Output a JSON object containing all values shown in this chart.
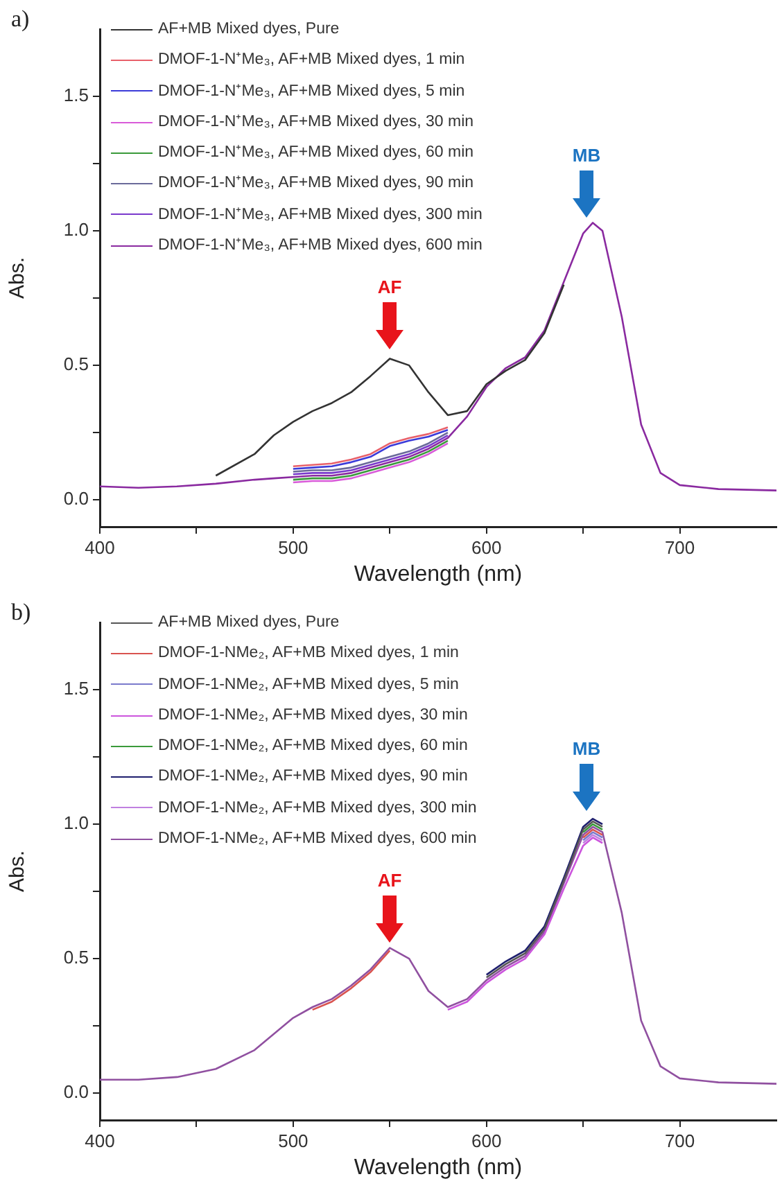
{
  "chart_data": [
    {
      "type": "line",
      "title": "a)",
      "xlabel": "Wavelength (nm)",
      "ylabel": "Abs.",
      "legend": "top left",
      "grid": false,
      "xlim": [
        400,
        750
      ],
      "ylim": [
        -0.1,
        1.75
      ],
      "xticks": [
        400,
        {
          "value": 450,
          "label": null
        },
        500,
        {
          "value": 550,
          "label": null
        },
        600,
        {
          "value": 650,
          "label": null
        },
        700
      ],
      "yticks": [
        {
          "value": 0,
          "label": "0.0"
        },
        {
          "value": 0.25,
          "label": null
        },
        {
          "value": 0.5,
          "label": "0.5"
        },
        {
          "value": 0.75,
          "label": null
        },
        {
          "value": 1,
          "label": "1.0"
        },
        {
          "value": 1.25,
          "label": null
        },
        {
          "value": 1.5,
          "label": "1.5"
        }
      ],
      "annotations": [
        "AF",
        "MB"
      ],
      "x": [
        400,
        420,
        440,
        460,
        480,
        490,
        500,
        510,
        520,
        530,
        540,
        550,
        560,
        570,
        580,
        590,
        600,
        610,
        620,
        630,
        640,
        650,
        655,
        660,
        670,
        680,
        690,
        700,
        720,
        750
      ],
      "series": [
        {
          "name": "AF+MB Mixed dyes, Pure",
          "color": "#333333",
          "values": [
            null,
            null,
            null,
            0.09,
            0.17,
            0.24,
            0.29,
            0.33,
            0.36,
            0.4,
            0.46,
            0.525,
            0.5,
            0.4,
            0.315,
            0.33,
            0.43,
            0.48,
            0.52,
            0.62,
            0.8,
            null,
            null,
            null,
            null,
            null,
            null,
            null,
            null,
            null
          ]
        },
        {
          "name": "DMOF-1-N⁺Me₃, AF+MB Mixed dyes, 1 min",
          "color": "#e8606a",
          "values": [
            null,
            null,
            null,
            null,
            null,
            null,
            0.125,
            0.13,
            0.135,
            0.15,
            0.17,
            0.21,
            0.23,
            0.245,
            0.27,
            null,
            null,
            null,
            null,
            null,
            null,
            null,
            null,
            null,
            null,
            null,
            null,
            null,
            null,
            null
          ]
        },
        {
          "name": "DMOF-1-N⁺Me₃, AF+MB Mixed dyes, 5 min",
          "color": "#3b3bd9",
          "values": [
            null,
            null,
            null,
            null,
            null,
            null,
            0.115,
            0.12,
            0.125,
            0.14,
            0.16,
            0.2,
            0.22,
            0.235,
            0.26,
            null,
            null,
            null,
            null,
            null,
            null,
            null,
            null,
            null,
            null,
            null,
            null,
            null,
            null,
            null
          ]
        },
        {
          "name": "DMOF-1-N⁺Me₃, AF+MB Mixed dyes, 30 min",
          "color": "#d95bd9",
          "values": [
            null,
            null,
            null,
            null,
            null,
            null,
            0.065,
            0.07,
            0.07,
            0.08,
            0.1,
            0.12,
            0.14,
            0.17,
            0.21,
            null,
            null,
            null,
            null,
            null,
            null,
            null,
            null,
            null,
            null,
            null,
            null,
            null,
            null,
            null
          ]
        },
        {
          "name": "DMOF-1-N⁺Me₃, AF+MB Mixed dyes, 60 min",
          "color": "#3a9a3a",
          "values": [
            null,
            null,
            null,
            null,
            null,
            null,
            0.075,
            0.08,
            0.08,
            0.09,
            0.11,
            0.13,
            0.15,
            0.18,
            0.22,
            null,
            null,
            null,
            null,
            null,
            null,
            null,
            null,
            null,
            null,
            null,
            null,
            null,
            null,
            null
          ]
        },
        {
          "name": "DMOF-1-N⁺Me₃, AF+MB Mixed dyes, 90 min",
          "color": "#6a6a9a",
          "values": [
            null,
            null,
            null,
            null,
            null,
            null,
            0.105,
            0.11,
            0.11,
            0.12,
            0.14,
            0.16,
            0.18,
            0.21,
            0.25,
            null,
            null,
            null,
            null,
            null,
            null,
            null,
            null,
            null,
            null,
            null,
            null,
            null,
            null,
            null
          ]
        },
        {
          "name": "DMOF-1-N⁺Me₃, AF+MB Mixed dyes, 300 min",
          "color": "#7a3acc",
          "values": [
            null,
            null,
            null,
            null,
            null,
            null,
            0.095,
            0.1,
            0.1,
            0.11,
            0.13,
            0.15,
            0.17,
            0.2,
            0.24,
            null,
            null,
            null,
            null,
            null,
            null,
            null,
            null,
            null,
            null,
            null,
            null,
            null,
            null,
            null
          ]
        },
        {
          "name": "DMOF-1-N⁺Me₃, AF+MB Mixed dyes, 600 min",
          "color": "#8a2aa0",
          "values": [
            0.05,
            0.045,
            0.05,
            0.06,
            0.075,
            0.08,
            0.085,
            0.09,
            0.09,
            0.1,
            0.12,
            0.14,
            0.16,
            0.19,
            0.23,
            0.31,
            0.42,
            0.49,
            0.53,
            0.63,
            0.81,
            0.99,
            1.03,
            1.0,
            0.68,
            0.28,
            0.1,
            0.055,
            0.04,
            0.035
          ]
        }
      ]
    },
    {
      "type": "line",
      "title": "b)",
      "xlabel": "Wavelength (nm)",
      "ylabel": "Abs.",
      "legend": "top left",
      "grid": false,
      "xlim": [
        400,
        750
      ],
      "ylim": [
        -0.1,
        1.75
      ],
      "xticks": [
        400,
        {
          "value": 450,
          "label": null
        },
        500,
        {
          "value": 550,
          "label": null
        },
        600,
        {
          "value": 650,
          "label": null
        },
        700
      ],
      "yticks": [
        {
          "value": 0,
          "label": "0.0"
        },
        {
          "value": 0.25,
          "label": null
        },
        {
          "value": 0.5,
          "label": "0.5"
        },
        {
          "value": 0.75,
          "label": null
        },
        {
          "value": 1,
          "label": "1.0"
        },
        {
          "value": 1.25,
          "label": null
        },
        {
          "value": 1.5,
          "label": "1.5"
        }
      ],
      "annotations": [
        "AF",
        "MB"
      ],
      "x": [
        400,
        420,
        440,
        460,
        480,
        490,
        500,
        510,
        520,
        530,
        540,
        550,
        560,
        570,
        580,
        590,
        600,
        610,
        620,
        630,
        640,
        650,
        655,
        660,
        670,
        680,
        690,
        700,
        720,
        750
      ],
      "series": [
        {
          "name": "AF+MB Mixed dyes, Pure",
          "color": "#555555",
          "values": [
            null,
            null,
            null,
            null,
            null,
            null,
            null,
            null,
            null,
            null,
            null,
            null,
            null,
            null,
            null,
            null,
            0.43,
            0.48,
            0.52,
            0.61,
            0.79,
            0.98,
            1.01,
            0.99,
            null,
            null,
            null,
            null,
            null,
            null
          ]
        },
        {
          "name": "DMOF-1-NMe₂, AF+MB Mixed dyes, 1 min",
          "color": "#d9534f",
          "values": [
            null,
            null,
            null,
            null,
            null,
            null,
            null,
            0.31,
            0.34,
            0.39,
            0.45,
            0.53,
            null,
            null,
            null,
            null,
            null,
            null,
            null,
            null,
            null,
            0.95,
            0.98,
            0.96,
            null,
            null,
            null,
            null,
            null,
            null
          ]
        },
        {
          "name": "DMOF-1-NMe₂, AF+MB Mixed dyes, 5 min",
          "color": "#7a7acc",
          "values": [
            null,
            null,
            null,
            null,
            null,
            null,
            null,
            null,
            null,
            null,
            null,
            null,
            null,
            null,
            null,
            null,
            null,
            null,
            null,
            null,
            null,
            0.94,
            0.97,
            0.95,
            null,
            null,
            null,
            null,
            null,
            null
          ]
        },
        {
          "name": "DMOF-1-NMe₂, AF+MB Mixed dyes, 30 min",
          "color": "#cc55dd",
          "values": [
            null,
            null,
            null,
            null,
            null,
            null,
            null,
            null,
            null,
            null,
            null,
            null,
            null,
            null,
            0.31,
            0.34,
            0.41,
            0.46,
            0.5,
            0.59,
            0.76,
            0.92,
            0.95,
            0.93,
            null,
            null,
            null,
            null,
            null,
            null
          ]
        },
        {
          "name": "DMOF-1-NMe₂, AF+MB Mixed dyes, 60 min",
          "color": "#3a9a3a",
          "values": [
            null,
            null,
            null,
            null,
            null,
            null,
            null,
            null,
            null,
            null,
            null,
            null,
            null,
            null,
            null,
            null,
            null,
            null,
            null,
            null,
            null,
            0.97,
            1.0,
            0.98,
            null,
            null,
            null,
            null,
            null,
            null
          ]
        },
        {
          "name": "DMOF-1-NMe₂, AF+MB Mixed dyes, 90 min",
          "color": "#1e1e6e",
          "values": [
            null,
            null,
            null,
            null,
            null,
            null,
            null,
            null,
            null,
            null,
            null,
            null,
            null,
            null,
            null,
            null,
            0.44,
            0.49,
            0.53,
            0.62,
            0.8,
            0.99,
            1.02,
            1.0,
            null,
            null,
            null,
            null,
            null,
            null
          ]
        },
        {
          "name": "DMOF-1-NMe₂, AF+MB Mixed dyes, 300 min",
          "color": "#c080e0",
          "values": [
            null,
            null,
            null,
            null,
            null,
            null,
            null,
            null,
            null,
            null,
            null,
            null,
            null,
            null,
            null,
            null,
            null,
            null,
            null,
            null,
            null,
            0.93,
            0.96,
            0.94,
            null,
            null,
            null,
            null,
            null,
            null
          ]
        },
        {
          "name": "DMOF-1-NMe₂, AF+MB Mixed dyes, 600 min",
          "color": "#9050a0",
          "values": [
            0.05,
            0.05,
            0.06,
            0.09,
            0.16,
            0.22,
            0.28,
            0.32,
            0.35,
            0.4,
            0.46,
            0.54,
            0.5,
            0.38,
            0.32,
            0.35,
            0.42,
            0.47,
            0.51,
            0.6,
            0.78,
            0.96,
            0.99,
            0.97,
            0.67,
            0.27,
            0.1,
            0.055,
            0.04,
            0.035
          ]
        }
      ]
    }
  ]
}
